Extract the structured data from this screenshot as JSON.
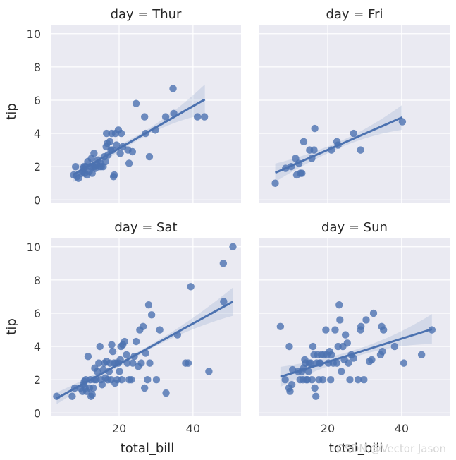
{
  "chart_data": {
    "type": "scatter",
    "facet_label_prefix": "day = ",
    "xlabel": "total_bill",
    "ylabel": "tip",
    "xlim": [
      1.5,
      53
    ],
    "ylim": [
      -0.2,
      10.5
    ],
    "xticks": [
      20,
      40
    ],
    "yticks": [
      0,
      2,
      4,
      6,
      8,
      10
    ],
    "grid": true,
    "panels": [
      {
        "day": "Thur",
        "regression": {
          "x_range": [
            7.5,
            43.2
          ],
          "intercept": 0.56,
          "slope": 0.127,
          "ci_halfwidth_ends": [
            0.45,
            0.9
          ]
        },
        "points": [
          [
            7.7,
            1.5
          ],
          [
            8.2,
            2.0
          ],
          [
            8.6,
            1.4
          ],
          [
            9.0,
            1.3
          ],
          [
            9.8,
            1.6
          ],
          [
            10.1,
            1.7
          ],
          [
            10.3,
            1.9
          ],
          [
            10.5,
            2.0
          ],
          [
            10.7,
            1.6
          ],
          [
            11.0,
            2.0
          ],
          [
            11.3,
            1.5
          ],
          [
            11.5,
            2.3
          ],
          [
            11.9,
            1.7
          ],
          [
            12.2,
            2.0
          ],
          [
            12.5,
            2.5
          ],
          [
            12.7,
            1.6
          ],
          [
            13.0,
            2.0
          ],
          [
            13.2,
            2.8
          ],
          [
            13.4,
            2.0
          ],
          [
            13.6,
            1.9
          ],
          [
            14.0,
            2.1
          ],
          [
            14.3,
            2.4
          ],
          [
            14.8,
            2.0
          ],
          [
            15.0,
            2.2
          ],
          [
            15.2,
            2.0
          ],
          [
            15.7,
            2.0
          ],
          [
            16.0,
            2.6
          ],
          [
            16.3,
            2.3
          ],
          [
            16.5,
            3.2
          ],
          [
            16.6,
            4.0
          ],
          [
            16.8,
            3.4
          ],
          [
            17.0,
            2.7
          ],
          [
            17.5,
            3.5
          ],
          [
            17.8,
            3.0
          ],
          [
            18.0,
            4.0
          ],
          [
            18.2,
            3.0
          ],
          [
            18.5,
            1.4
          ],
          [
            18.7,
            1.5
          ],
          [
            19.0,
            4.0
          ],
          [
            19.3,
            3.3
          ],
          [
            19.8,
            4.2
          ],
          [
            20.3,
            2.8
          ],
          [
            20.6,
            4.0
          ],
          [
            21.0,
            3.2
          ],
          [
            22.4,
            3.0
          ],
          [
            22.7,
            2.2
          ],
          [
            23.6,
            2.9
          ],
          [
            24.6,
            5.8
          ],
          [
            26.9,
            5.0
          ],
          [
            27.2,
            4.0
          ],
          [
            28.2,
            2.6
          ],
          [
            29.8,
            4.2
          ],
          [
            32.6,
            5.0
          ],
          [
            34.6,
            6.7
          ],
          [
            34.8,
            5.2
          ],
          [
            41.2,
            5.0
          ],
          [
            43.1,
            5.0
          ]
        ]
      },
      {
        "day": "Fri",
        "regression": {
          "x_range": [
            5.8,
            40.2
          ],
          "intercept": 1.07,
          "slope": 0.097,
          "ci_halfwidth_ends": [
            0.55,
            0.75
          ]
        },
        "points": [
          [
            5.8,
            1.0
          ],
          [
            8.6,
            1.9
          ],
          [
            10.1,
            2.0
          ],
          [
            11.3,
            2.5
          ],
          [
            11.6,
            1.5
          ],
          [
            12.2,
            2.2
          ],
          [
            12.6,
            1.6
          ],
          [
            13.0,
            1.6
          ],
          [
            13.5,
            3.5
          ],
          [
            15.1,
            3.0
          ],
          [
            15.7,
            2.5
          ],
          [
            16.3,
            3.0
          ],
          [
            16.5,
            4.3
          ],
          [
            21.0,
            3.0
          ],
          [
            22.5,
            3.5
          ],
          [
            22.8,
            3.3
          ],
          [
            27.0,
            4.0
          ],
          [
            28.9,
            3.0
          ],
          [
            40.2,
            4.7
          ]
        ]
      },
      {
        "day": "Sat",
        "regression": {
          "x_range": [
            3.1,
            50.8
          ],
          "intercept": 0.5,
          "slope": 0.122,
          "ci_halfwidth_ends": [
            0.35,
            0.85
          ]
        },
        "points": [
          [
            3.1,
            1.0
          ],
          [
            7.3,
            1.0
          ],
          [
            8.0,
            1.5
          ],
          [
            9.5,
            1.5
          ],
          [
            10.1,
            1.3
          ],
          [
            10.3,
            1.7
          ],
          [
            10.6,
            1.9
          ],
          [
            10.8,
            1.5
          ],
          [
            11.0,
            2.0
          ],
          [
            11.2,
            1.3
          ],
          [
            11.6,
            3.4
          ],
          [
            12.0,
            1.5
          ],
          [
            12.2,
            2.0
          ],
          [
            12.4,
            1.0
          ],
          [
            12.7,
            1.1
          ],
          [
            13.0,
            1.5
          ],
          [
            13.3,
            2.0
          ],
          [
            13.4,
            2.7
          ],
          [
            13.8,
            2.0
          ],
          [
            14.1,
            2.5
          ],
          [
            14.5,
            3.0
          ],
          [
            14.8,
            4.0
          ],
          [
            15.1,
            2.0
          ],
          [
            15.4,
            1.7
          ],
          [
            15.7,
            2.6
          ],
          [
            16.0,
            3.0
          ],
          [
            16.3,
            2.1
          ],
          [
            16.6,
            3.1
          ],
          [
            16.9,
            2.0
          ],
          [
            17.3,
            2.5
          ],
          [
            17.5,
            3.0
          ],
          [
            17.8,
            2.0
          ],
          [
            18.0,
            4.1
          ],
          [
            18.3,
            3.7
          ],
          [
            18.6,
            3.0
          ],
          [
            18.9,
            1.8
          ],
          [
            19.2,
            3.0
          ],
          [
            19.5,
            2.0
          ],
          [
            19.8,
            3.0
          ],
          [
            20.1,
            2.5
          ],
          [
            20.3,
            3.2
          ],
          [
            20.5,
            4.0
          ],
          [
            20.7,
            2.0
          ],
          [
            21.0,
            4.1
          ],
          [
            21.5,
            4.3
          ],
          [
            22.0,
            3.5
          ],
          [
            22.2,
            3.0
          ],
          [
            22.7,
            2.0
          ],
          [
            23.3,
            2.0
          ],
          [
            23.7,
            3.0
          ],
          [
            24.1,
            3.4
          ],
          [
            24.6,
            4.3
          ],
          [
            25.2,
            2.8
          ],
          [
            25.6,
            5.0
          ],
          [
            26.0,
            3.0
          ],
          [
            26.5,
            5.2
          ],
          [
            26.9,
            1.5
          ],
          [
            27.2,
            3.6
          ],
          [
            27.7,
            2.0
          ],
          [
            28.0,
            6.5
          ],
          [
            28.3,
            3.0
          ],
          [
            28.8,
            5.9
          ],
          [
            30.1,
            2.0
          ],
          [
            31.0,
            5.0
          ],
          [
            32.7,
            1.2
          ],
          [
            35.8,
            4.7
          ],
          [
            38.0,
            3.0
          ],
          [
            38.7,
            3.0
          ],
          [
            39.4,
            7.6
          ],
          [
            44.3,
            2.5
          ],
          [
            48.2,
            9.0
          ],
          [
            48.3,
            6.7
          ],
          [
            50.8,
            10.0
          ]
        ]
      },
      {
        "day": "Sun",
        "regression": {
          "x_range": [
            7.2,
            48.2
          ],
          "intercept": 1.67,
          "slope": 0.07,
          "ci_halfwidth_ends": [
            0.6,
            0.9
          ]
        },
        "points": [
          [
            7.2,
            5.2
          ],
          [
            8.5,
            2.0
          ],
          [
            9.5,
            1.5
          ],
          [
            9.6,
            4.0
          ],
          [
            9.8,
            1.3
          ],
          [
            10.3,
            1.7
          ],
          [
            10.5,
            2.6
          ],
          [
            12.0,
            2.5
          ],
          [
            12.5,
            2.0
          ],
          [
            13.0,
            2.5
          ],
          [
            13.3,
            2.0
          ],
          [
            13.5,
            2.7
          ],
          [
            13.8,
            3.2
          ],
          [
            14.0,
            3.0
          ],
          [
            14.2,
            2.0
          ],
          [
            14.5,
            2.0
          ],
          [
            14.8,
            2.5
          ],
          [
            15.0,
            3.0
          ],
          [
            15.4,
            3.0
          ],
          [
            15.7,
            2.0
          ],
          [
            16.0,
            4.0
          ],
          [
            16.3,
            3.5
          ],
          [
            16.5,
            1.5
          ],
          [
            16.8,
            1.0
          ],
          [
            17.0,
            3.0
          ],
          [
            17.3,
            3.5
          ],
          [
            17.6,
            2.0
          ],
          [
            17.8,
            3.0
          ],
          [
            18.0,
            3.0
          ],
          [
            18.3,
            3.5
          ],
          [
            18.7,
            2.0
          ],
          [
            19.0,
            3.5
          ],
          [
            19.5,
            5.0
          ],
          [
            19.8,
            3.5
          ],
          [
            20.2,
            3.0
          ],
          [
            20.5,
            3.7
          ],
          [
            20.8,
            2.0
          ],
          [
            21.0,
            3.5
          ],
          [
            21.5,
            3.0
          ],
          [
            22.0,
            5.0
          ],
          [
            22.5,
            3.0
          ],
          [
            22.8,
            4.0
          ],
          [
            23.1,
            6.5
          ],
          [
            23.3,
            5.6
          ],
          [
            23.7,
            2.5
          ],
          [
            24.1,
            4.0
          ],
          [
            24.5,
            3.2
          ],
          [
            24.8,
            4.7
          ],
          [
            25.3,
            4.2
          ],
          [
            25.6,
            3.0
          ],
          [
            26.0,
            2.0
          ],
          [
            26.4,
            3.5
          ],
          [
            27.0,
            3.3
          ],
          [
            28.2,
            2.0
          ],
          [
            28.9,
            5.0
          ],
          [
            29.0,
            5.2
          ],
          [
            29.8,
            2.0
          ],
          [
            30.4,
            5.6
          ],
          [
            31.3,
            3.1
          ],
          [
            31.9,
            3.2
          ],
          [
            32.4,
            6.0
          ],
          [
            34.3,
            3.5
          ],
          [
            34.6,
            5.2
          ],
          [
            34.8,
            3.7
          ],
          [
            35.1,
            5.0
          ],
          [
            38.1,
            4.0
          ],
          [
            40.6,
            3.0
          ],
          [
            45.4,
            3.5
          ],
          [
            48.2,
            5.0
          ]
        ]
      }
    ]
  },
  "watermark": "CSDN @Vector Jason"
}
